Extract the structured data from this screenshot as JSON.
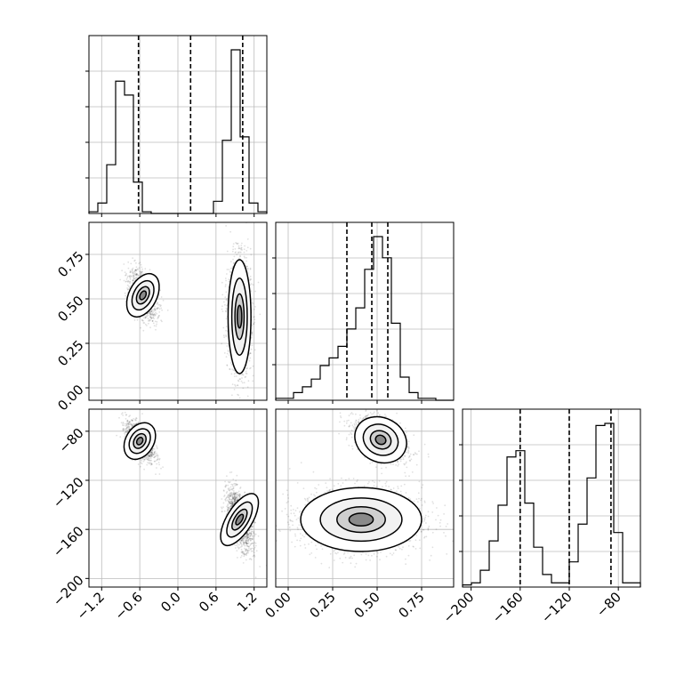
{
  "chart_data": {
    "type": "corner",
    "title": "",
    "series_color": "#000000",
    "grid": true,
    "variables": [
      {
        "index": 0,
        "range": [
          -1.4,
          1.4
        ],
        "ticks": [
          -1.2,
          -0.6,
          0.0,
          0.6,
          1.2
        ],
        "tick_labels": [
          "−1.2",
          "−0.6",
          "0.0",
          "0.6",
          "1.2"
        ],
        "quantiles": [
          -0.62,
          0.2,
          1.02
        ],
        "hist": [
          0.01,
          0.06,
          0.28,
          0.76,
          0.68,
          0.18,
          0.01,
          0,
          0,
          0,
          0,
          0,
          0,
          0,
          0.07,
          0.42,
          0.94,
          0.44,
          0.06,
          0.01
        ]
      },
      {
        "index": 1,
        "range": [
          -0.07,
          0.93
        ],
        "ticks": [
          0.0,
          0.25,
          0.5,
          0.75
        ],
        "tick_labels": [
          "0.00",
          "0.25",
          "0.50",
          "0.75"
        ],
        "quantiles": [
          0.33,
          0.47,
          0.56
        ],
        "hist": [
          0.01,
          0.01,
          0.04,
          0.07,
          0.11,
          0.18,
          0.22,
          0.28,
          0.37,
          0.48,
          0.68,
          0.85,
          0.74,
          0.4,
          0.12,
          0.04,
          0.01,
          0.01,
          0,
          0
        ]
      },
      {
        "index": 2,
        "range": [
          -207,
          -62
        ],
        "ticks": [
          -200,
          -160,
          -120,
          -80
        ],
        "tick_labels": [
          "−200",
          "−160",
          "−120",
          "−80"
        ],
        "quantiles": [
          -160,
          -120,
          -86
        ],
        "hist": [
          0.01,
          0.02,
          0.08,
          0.22,
          0.39,
          0.62,
          0.65,
          0.4,
          0.19,
          0.06,
          0.02,
          0.02,
          0.12,
          0.3,
          0.52,
          0.77,
          0.78,
          0.26,
          0.02,
          0.02
        ]
      }
    ],
    "scatter_panels": [
      {
        "x_var": 0,
        "y_var": 1,
        "clusters": [
          {
            "center": [
              -0.55,
              0.52
            ],
            "sd": [
              0.11,
              0.065
            ],
            "rho": -0.45,
            "n": 1300
          },
          {
            "center": [
              0.97,
              0.4
            ],
            "sd": [
              0.09,
              0.16
            ],
            "rho": 0.0,
            "n": 1800
          }
        ]
      },
      {
        "x_var": 0,
        "y_var": 2,
        "clusters": [
          {
            "center": [
              -0.6,
              -88
            ],
            "sd": [
              0.11,
              8
            ],
            "rho": -0.55,
            "n": 1300
          },
          {
            "center": [
              0.97,
              -152
            ],
            "sd": [
              0.1,
              12
            ],
            "rho": -0.55,
            "n": 1600
          }
        ]
      },
      {
        "x_var": 1,
        "y_var": 2,
        "clusters": [
          {
            "center": [
              0.52,
              -87
            ],
            "sd": [
              0.075,
              9
            ],
            "rho": -0.45,
            "n": 1300
          },
          {
            "center": [
              0.41,
              -152
            ],
            "sd": [
              0.17,
              13
            ],
            "rho": 0.0,
            "n": 2000
          }
        ]
      }
    ]
  }
}
